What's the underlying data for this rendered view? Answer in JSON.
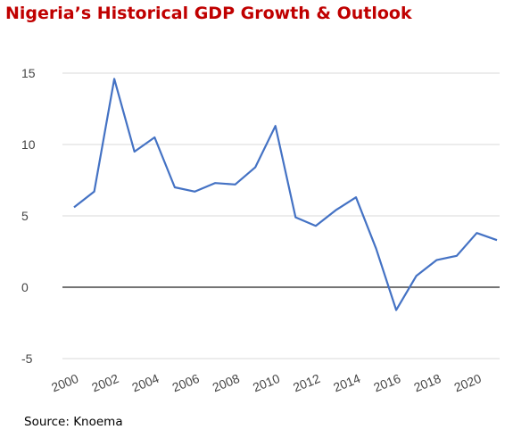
{
  "title": "Nigeria’s Historical GDP Growth & Outlook",
  "source": "Source: Knoema",
  "chart_data": {
    "type": "line",
    "title": "Nigeria’s Historical GDP Growth & Outlook",
    "xlabel": "",
    "ylabel": "",
    "x": [
      2000,
      2001,
      2002,
      2003,
      2004,
      2005,
      2006,
      2007,
      2008,
      2009,
      2010,
      2011,
      2012,
      2013,
      2014,
      2015,
      2016,
      2017,
      2018,
      2019,
      2020,
      2021
    ],
    "series": [
      {
        "name": "",
        "color": "#4472c4",
        "values": [
          5.6,
          6.7,
          14.6,
          9.5,
          10.5,
          7.0,
          6.7,
          7.3,
          7.2,
          8.4,
          11.3,
          4.9,
          4.3,
          5.4,
          6.3,
          2.7,
          -1.6,
          0.8,
          1.9,
          2.2,
          3.8,
          3.3
        ]
      }
    ],
    "x_tick_labels": [
      "2000",
      "2002",
      "2004",
      "2006",
      "2008",
      "2010",
      "2012",
      "2014",
      "2016",
      "2018",
      "2020"
    ],
    "y_ticks": [
      15,
      10,
      5,
      0,
      -5
    ],
    "ylim": [
      -5,
      15
    ],
    "xlim": [
      2000,
      2021
    ],
    "grid": true,
    "zero_line": true,
    "legend": "none"
  }
}
